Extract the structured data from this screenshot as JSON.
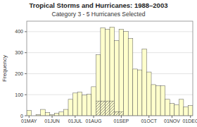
{
  "chart_data": {
    "type": "bar",
    "title": "Tropical Storms and Hurricanes: 1988–2003",
    "subtitle": "Category 3 - 5 Hurricanes Selected",
    "y_label": "Frequency",
    "categories": [
      "01MAY",
      null,
      null,
      null,
      null,
      "01JUN",
      null,
      null,
      null,
      null,
      "01JUL",
      null,
      null,
      null,
      "01AUG",
      null,
      null,
      null,
      null,
      null,
      "01SEP",
      null,
      null,
      null,
      null,
      null,
      "01OCT",
      null,
      null,
      null,
      null,
      "01NOV",
      null,
      null,
      null,
      "01DEC"
    ],
    "series": [
      {
        "color": "#ffffcc",
        "values": [
          25,
          0,
          5,
          30,
          15,
          5,
          12,
          18,
          30,
          78,
          108,
          112,
          98,
          102,
          138,
          290,
          418,
          412,
          422,
          358,
          412,
          402,
          368,
          222,
          218,
          318,
          208,
          148,
          142,
          142,
          78,
          58,
          52,
          78,
          42,
          48
        ]
      },
      {
        "color": "#ffffcc",
        "values": [
          null,
          null,
          null,
          null,
          null,
          null,
          null,
          null,
          null,
          null,
          null,
          null,
          null,
          null,
          null,
          70,
          70,
          70,
          70,
          18,
          18,
          null,
          null,
          null,
          null,
          null,
          null,
          null,
          null,
          null,
          null,
          null,
          null,
          null,
          null,
          null
        ]
      }
    ],
    "ylim": [
      0,
      450
    ],
    "yticks": [
      0,
      100,
      200,
      300,
      400
    ],
    "grid": true
  }
}
